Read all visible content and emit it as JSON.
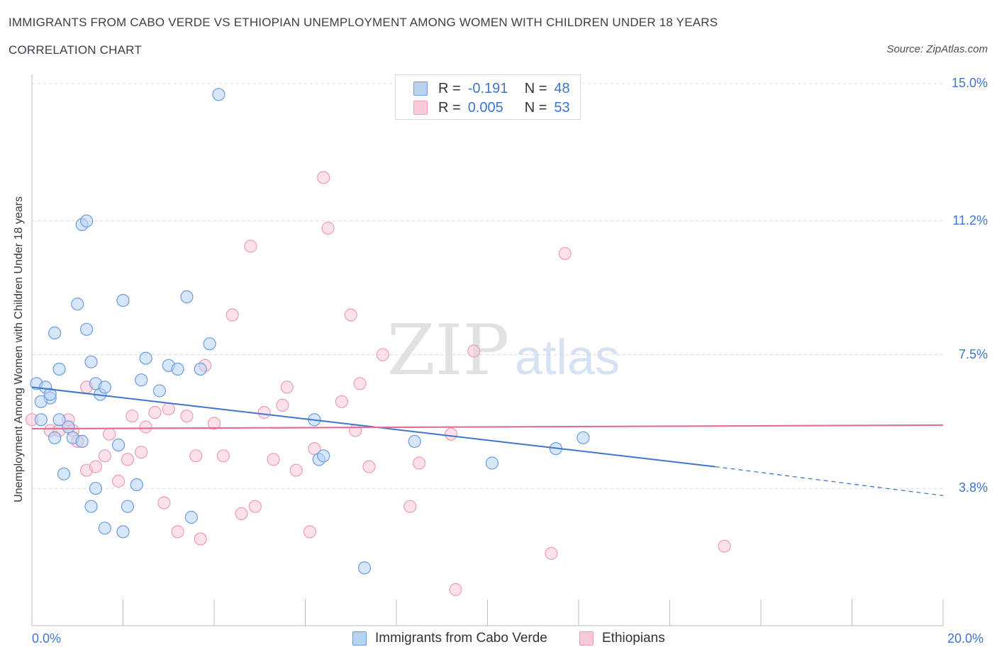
{
  "header": {
    "title": "IMMIGRANTS FROM CABO VERDE VS ETHIOPIAN UNEMPLOYMENT AMONG WOMEN WITH CHILDREN UNDER 18 YEARS",
    "subtitle": "CORRELATION CHART",
    "source": "Source: ZipAtlas.com"
  },
  "watermark": {
    "zip": "ZIP",
    "atlas": "atlas"
  },
  "colors": {
    "blue": "#3d76cc",
    "blue_fill": "#b8d2f4",
    "blue_stroke": "#6a9ce0",
    "pink": "#e06e98",
    "pink_fill": "#f9c9d8",
    "pink_stroke": "#ee9bb8",
    "grid": "#dcdcdc"
  },
  "legend_top": {
    "rows": [
      {
        "r_label": "R =",
        "r_value": "-0.191",
        "n_label": "N =",
        "n_value": "48"
      },
      {
        "r_label": "R =",
        "r_value": "0.005",
        "n_label": "N =",
        "n_value": "53"
      }
    ]
  },
  "legend_bottom": {
    "items": [
      "Immigrants from Cabo Verde",
      "Ethiopians"
    ]
  },
  "chart_data": {
    "type": "scatter",
    "title": "IMMIGRANTS FROM CABO VERDE VS ETHIOPIAN UNEMPLOYMENT AMONG WOMEN WITH CHILDREN UNDER 18 YEARS",
    "ylabel": "Unemployment Among Women with Children Under 18 years",
    "xlabel": "",
    "xlim": [
      0,
      20
    ],
    "ylim": [
      0,
      15
    ],
    "x_tick_labels": [
      "0.0%",
      "20.0%"
    ],
    "y_ticks": [
      {
        "value": 3.8,
        "label": "3.8%"
      },
      {
        "value": 7.5,
        "label": "7.5%"
      },
      {
        "value": 11.2,
        "label": "11.2%"
      },
      {
        "value": 15.0,
        "label": "15.0%"
      }
    ],
    "grid": true,
    "legend_position": "top-center",
    "series": [
      {
        "name": "Immigrants from Cabo Verde",
        "color": "#3d76cc",
        "trend": {
          "x": [
            0,
            15
          ],
          "y": [
            6.6,
            4.4
          ],
          "dashed_to": [
            20,
            3.6
          ]
        },
        "points": [
          [
            0.1,
            6.7
          ],
          [
            0.2,
            5.7
          ],
          [
            0.3,
            6.6
          ],
          [
            0.4,
            6.3
          ],
          [
            0.5,
            5.2
          ],
          [
            0.4,
            6.4
          ],
          [
            0.7,
            4.2
          ],
          [
            0.8,
            5.5
          ],
          [
            0.9,
            5.2
          ],
          [
            1.0,
            8.9
          ],
          [
            0.5,
            8.1
          ],
          [
            0.6,
            7.1
          ],
          [
            1.1,
            5.1
          ],
          [
            1.2,
            8.2
          ],
          [
            1.1,
            11.1
          ],
          [
            1.3,
            7.3
          ],
          [
            1.4,
            6.7
          ],
          [
            1.2,
            11.2
          ],
          [
            1.3,
            3.3
          ],
          [
            1.5,
            6.4
          ],
          [
            1.4,
            3.8
          ],
          [
            1.6,
            6.6
          ],
          [
            1.6,
            2.7
          ],
          [
            1.9,
            5.0
          ],
          [
            2.0,
            9.0
          ],
          [
            2.0,
            2.6
          ],
          [
            2.1,
            3.3
          ],
          [
            2.3,
            3.9
          ],
          [
            2.4,
            6.8
          ],
          [
            2.5,
            7.4
          ],
          [
            2.8,
            6.5
          ],
          [
            3.0,
            7.2
          ],
          [
            3.2,
            7.1
          ],
          [
            3.4,
            9.1
          ],
          [
            3.5,
            3.0
          ],
          [
            3.7,
            7.1
          ],
          [
            3.9,
            7.8
          ],
          [
            4.1,
            14.7
          ],
          [
            6.2,
            5.7
          ],
          [
            6.3,
            4.6
          ],
          [
            6.4,
            4.7
          ],
          [
            7.3,
            1.6
          ],
          [
            8.4,
            5.1
          ],
          [
            10.1,
            4.5
          ],
          [
            11.5,
            4.9
          ],
          [
            12.1,
            5.2
          ],
          [
            0.2,
            6.2
          ],
          [
            0.6,
            5.7
          ]
        ]
      },
      {
        "name": "Ethiopians",
        "color": "#e06e98",
        "trend": {
          "x": [
            0,
            20
          ],
          "y": [
            5.45,
            5.55
          ]
        },
        "points": [
          [
            0.0,
            5.7
          ],
          [
            0.4,
            5.4
          ],
          [
            0.6,
            5.4
          ],
          [
            0.8,
            5.7
          ],
          [
            0.9,
            5.4
          ],
          [
            1.0,
            5.1
          ],
          [
            1.2,
            6.6
          ],
          [
            1.2,
            4.3
          ],
          [
            1.4,
            4.4
          ],
          [
            1.6,
            4.7
          ],
          [
            1.7,
            5.3
          ],
          [
            1.9,
            4.0
          ],
          [
            2.1,
            4.6
          ],
          [
            2.2,
            5.8
          ],
          [
            2.4,
            4.8
          ],
          [
            2.5,
            5.5
          ],
          [
            2.7,
            5.9
          ],
          [
            2.9,
            3.4
          ],
          [
            3.0,
            6.0
          ],
          [
            3.2,
            2.6
          ],
          [
            3.4,
            5.8
          ],
          [
            3.6,
            4.7
          ],
          [
            3.7,
            2.4
          ],
          [
            3.8,
            7.2
          ],
          [
            4.0,
            5.6
          ],
          [
            4.2,
            4.7
          ],
          [
            4.4,
            8.6
          ],
          [
            4.6,
            3.1
          ],
          [
            4.8,
            10.5
          ],
          [
            4.9,
            3.3
          ],
          [
            5.1,
            5.9
          ],
          [
            5.3,
            4.6
          ],
          [
            5.5,
            6.1
          ],
          [
            5.6,
            6.6
          ],
          [
            5.8,
            4.3
          ],
          [
            6.1,
            2.6
          ],
          [
            6.2,
            4.9
          ],
          [
            6.4,
            12.4
          ],
          [
            6.5,
            11.0
          ],
          [
            6.8,
            6.2
          ],
          [
            7.0,
            8.6
          ],
          [
            7.1,
            5.4
          ],
          [
            7.2,
            6.7
          ],
          [
            7.4,
            4.4
          ],
          [
            7.7,
            7.5
          ],
          [
            8.3,
            3.3
          ],
          [
            8.5,
            4.5
          ],
          [
            9.2,
            5.3
          ],
          [
            9.3,
            1.0
          ],
          [
            9.7,
            7.6
          ],
          [
            11.4,
            2.0
          ],
          [
            11.7,
            10.3
          ],
          [
            15.2,
            2.2
          ]
        ]
      }
    ]
  }
}
